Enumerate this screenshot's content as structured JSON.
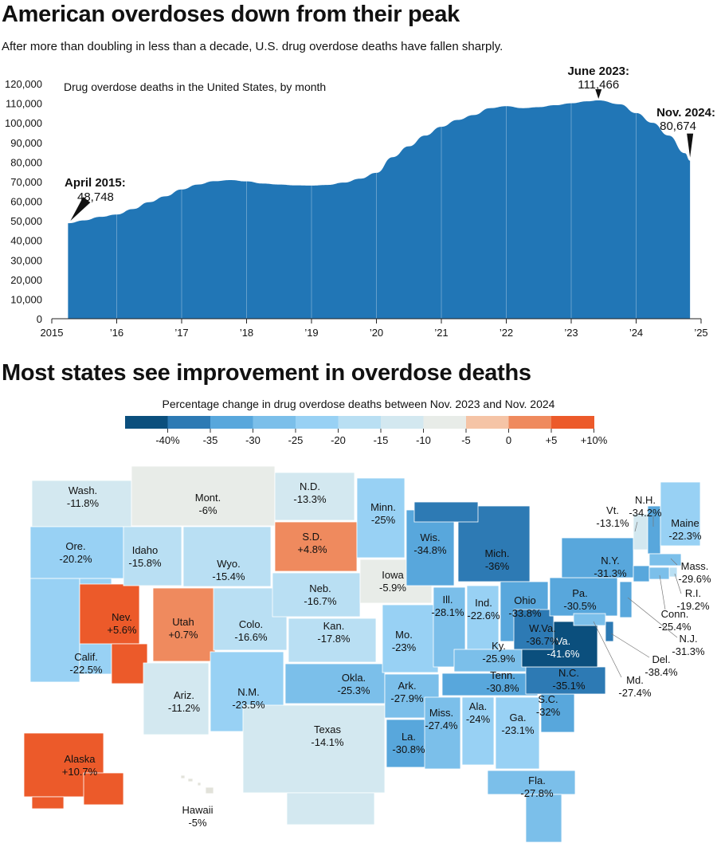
{
  "header": {
    "title": "American overdoses down from their peak",
    "subtitle": "After more than doubling in less than a decade, U.S. drug overdose deaths have fallen sharply.",
    "map_title": "Most states see improvement in overdose deaths"
  },
  "colors": {
    "area_fill": "#2176b6",
    "background": "#ffffff",
    "scale": [
      "#0b4f7d",
      "#2d7ab4",
      "#58a7dc",
      "#7bbfea",
      "#98d1f4",
      "#b9dff3",
      "#d3e8f0",
      "#e8ece8",
      "#f5c4a6",
      "#ef8a5e",
      "#ec5a2a"
    ]
  },
  "chart_data": [
    {
      "type": "area",
      "title": "Drug overdose deaths in the United States, by month",
      "xlabel": "",
      "ylabel": "",
      "x": [
        2015.25,
        2015.5,
        2015.75,
        2016.0,
        2016.25,
        2016.5,
        2016.75,
        2017.0,
        2017.25,
        2017.5,
        2017.75,
        2018.0,
        2018.25,
        2018.5,
        2018.75,
        2019.0,
        2019.25,
        2019.5,
        2019.75,
        2020.0,
        2020.25,
        2020.5,
        2020.75,
        2021.0,
        2021.25,
        2021.5,
        2021.75,
        2022.0,
        2022.25,
        2022.5,
        2022.75,
        2023.0,
        2023.25,
        2023.42,
        2023.75,
        2024.0,
        2024.25,
        2024.5,
        2024.75,
        2024.83
      ],
      "values": [
        48748,
        50200,
        52000,
        53200,
        56000,
        59500,
        62500,
        66000,
        68500,
        70200,
        70800,
        70100,
        69000,
        68500,
        68100,
        68000,
        68300,
        69500,
        71500,
        74500,
        82500,
        88000,
        93500,
        98000,
        101500,
        104000,
        107500,
        108500,
        107500,
        108000,
        109000,
        110000,
        111000,
        111466,
        109500,
        105000,
        100000,
        93500,
        84500,
        80674
      ],
      "ylim": [
        0,
        120000
      ],
      "xlim": [
        2015,
        2025
      ],
      "yticks": [
        0,
        10000,
        20000,
        30000,
        40000,
        50000,
        60000,
        70000,
        80000,
        90000,
        100000,
        110000,
        120000
      ],
      "ytick_labels": [
        "0",
        "10,000",
        "20,000",
        "30,000",
        "40,000",
        "50,000",
        "60,000",
        "70,000",
        "80,000",
        "90,000",
        "100,000",
        "110,000",
        "120,000"
      ],
      "xticks": [
        2015,
        2016,
        2017,
        2018,
        2019,
        2020,
        2021,
        2022,
        2023,
        2024,
        2025
      ],
      "xtick_labels": [
        "2015",
        "’16",
        "’17",
        "’18",
        "’19",
        "’20",
        "’21",
        "’22",
        "’23",
        "’24",
        "’25"
      ],
      "grid": "vertical lines at each year",
      "annotations": [
        {
          "label": "April 2015:",
          "value": "48,748",
          "x": 2015.25,
          "y": 48748
        },
        {
          "label": "June 2023:",
          "value": "111,466",
          "x": 2023.42,
          "y": 111466
        },
        {
          "label": "Nov. 2024:",
          "value": "80,674",
          "x": 2024.83,
          "y": 80674
        }
      ]
    },
    {
      "type": "choropleth",
      "title": "Percentage change in drug overdose deaths between Nov. 2023 and Nov. 2024",
      "legend": {
        "bins": [
          -45,
          -40,
          -35,
          -30,
          -25,
          -20,
          -15,
          -10,
          -5,
          0,
          5,
          10
        ],
        "tick_labels": [
          "-40%",
          "-35",
          "-30",
          "-25",
          "-20",
          "-15",
          "-10",
          "-5",
          "0",
          "+5",
          "+10%"
        ]
      },
      "states": [
        {
          "name": "Wash.",
          "value": "-11.8%",
          "change": -11.8
        },
        {
          "name": "Ore.",
          "value": "-20.2%",
          "change": -20.2
        },
        {
          "name": "Calif.",
          "value": "-22.5%",
          "change": -22.5
        },
        {
          "name": "Nev.",
          "value": "+5.6%",
          "change": 5.6
        },
        {
          "name": "Idaho",
          "value": "-15.8%",
          "change": -15.8
        },
        {
          "name": "Mont.",
          "value": "-6%",
          "change": -6
        },
        {
          "name": "Wyo.",
          "value": "-15.4%",
          "change": -15.4
        },
        {
          "name": "Utah",
          "value": "+0.7%",
          "change": 0.7
        },
        {
          "name": "Ariz.",
          "value": "-11.2%",
          "change": -11.2
        },
        {
          "name": "Colo.",
          "value": "-16.6%",
          "change": -16.6
        },
        {
          "name": "N.M.",
          "value": "-23.5%",
          "change": -23.5
        },
        {
          "name": "N.D.",
          "value": "-13.3%",
          "change": -13.3
        },
        {
          "name": "S.D.",
          "value": "+4.8%",
          "change": 4.8
        },
        {
          "name": "Neb.",
          "value": "-16.7%",
          "change": -16.7
        },
        {
          "name": "Kan.",
          "value": "-17.8%",
          "change": -17.8
        },
        {
          "name": "Okla.",
          "value": "-25.3%",
          "change": -25.3
        },
        {
          "name": "Texas",
          "value": "-14.1%",
          "change": -14.1
        },
        {
          "name": "Minn.",
          "value": "-25%",
          "change": -25
        },
        {
          "name": "Iowa",
          "value": "-5.9%",
          "change": -5.9
        },
        {
          "name": "Mo.",
          "value": "-23%",
          "change": -23
        },
        {
          "name": "Ark.",
          "value": "-27.9%",
          "change": -27.9
        },
        {
          "name": "La.",
          "value": "-30.8%",
          "change": -30.8
        },
        {
          "name": "Wis.",
          "value": "-34.8%",
          "change": -34.8
        },
        {
          "name": "Ill.",
          "value": "-28.1%",
          "change": -28.1
        },
        {
          "name": "Mich.",
          "value": "-36%",
          "change": -36
        },
        {
          "name": "Ind.",
          "value": "-22.6%",
          "change": -22.6
        },
        {
          "name": "Ohio",
          "value": "-33.8%",
          "change": -33.8
        },
        {
          "name": "Ky.",
          "value": "-25.9%",
          "change": -25.9
        },
        {
          "name": "Tenn.",
          "value": "-30.8%",
          "change": -30.8
        },
        {
          "name": "Miss.",
          "value": "-27.4%",
          "change": -27.4
        },
        {
          "name": "Ala.",
          "value": "-24%",
          "change": -24
        },
        {
          "name": "Ga.",
          "value": "-23.1%",
          "change": -23.1
        },
        {
          "name": "Fla.",
          "value": "-27.8%",
          "change": -27.8
        },
        {
          "name": "S.C.",
          "value": "-32%",
          "change": -32
        },
        {
          "name": "N.C.",
          "value": "-35.1%",
          "change": -35.1
        },
        {
          "name": "Va.",
          "value": "-41.6%",
          "change": -41.6
        },
        {
          "name": "W.Va.",
          "value": "-36.7%",
          "change": -36.7
        },
        {
          "name": "Pa.",
          "value": "-30.5%",
          "change": -30.5
        },
        {
          "name": "N.Y.",
          "value": "-31.3%",
          "change": -31.3
        },
        {
          "name": "Vt.",
          "value": "-13.1%",
          "change": -13.1
        },
        {
          "name": "N.H.",
          "value": "-34.2%",
          "change": -34.2
        },
        {
          "name": "Maine",
          "value": "-22.3%",
          "change": -22.3
        },
        {
          "name": "Mass.",
          "value": "-29.6%",
          "change": -29.6
        },
        {
          "name": "R.I.",
          "value": "-19.2%",
          "change": -19.2
        },
        {
          "name": "Conn.",
          "value": "-25.4%",
          "change": -25.4
        },
        {
          "name": "N.J.",
          "value": "-31.3%",
          "change": -31.3
        },
        {
          "name": "Del.",
          "value": "-38.4%",
          "change": -38.4
        },
        {
          "name": "Md.",
          "value": "-27.4%",
          "change": -27.4
        },
        {
          "name": "Alaska",
          "value": "+10.7%",
          "change": 10.7
        },
        {
          "name": "Hawaii",
          "value": "-5%",
          "change": -5
        }
      ]
    }
  ]
}
